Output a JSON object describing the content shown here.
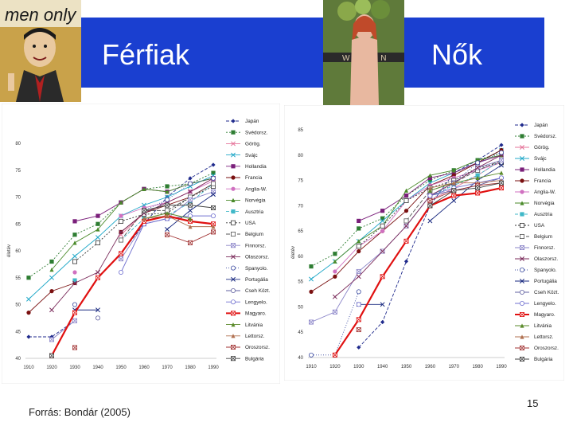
{
  "slide": {
    "title_left": "Férfiak",
    "title_right": "Nők",
    "source": "Forrás: Bondár (2005)",
    "page_number": "15",
    "banner_color": "#1a3fd0"
  },
  "images": {
    "left_magazine": {
      "title": "men only"
    },
    "right_magazine": {
      "title": "WOMEN"
    }
  },
  "chart_data": [
    {
      "type": "line",
      "ylabel": "életév",
      "x": [
        1910,
        1920,
        1930,
        1940,
        1950,
        1960,
        1970,
        1980,
        1990
      ],
      "ylim": [
        40,
        80
      ],
      "yticks": [
        40,
        45,
        50,
        55,
        60,
        65,
        70,
        75,
        80
      ],
      "legend_position": "right",
      "series": [
        {
          "name": "Japán",
          "color": "#1f2a8c",
          "marker": "diamond",
          "dash": "4,2",
          "values": [
            44,
            44,
            47,
            null,
            59.5,
            65,
            70,
            73.5,
            76
          ]
        },
        {
          "name": "Svédorsz.",
          "color": "#2e7d32",
          "marker": "square",
          "dash": "2,2",
          "values": [
            55,
            58,
            63,
            65,
            69,
            71.5,
            72,
            72.5,
            74.5
          ]
        },
        {
          "name": "Görög.",
          "color": "#e57399",
          "marker": "x",
          "dash": "",
          "values": [
            null,
            null,
            null,
            null,
            63,
            67,
            69,
            71,
            73.5
          ]
        },
        {
          "name": "Svájc",
          "color": "#20a8c8",
          "marker": "x",
          "dash": "",
          "values": [
            51,
            55,
            59,
            62.5,
            66.5,
            68.5,
            70,
            72,
            74
          ]
        },
        {
          "name": "Hollandia",
          "color": "#7a1f7a",
          "marker": "square",
          "dash": "",
          "values": [
            null,
            null,
            65.5,
            66.5,
            69,
            71.5,
            71,
            72.5,
            73.5
          ]
        },
        {
          "name": "Francia",
          "color": "#7a1010",
          "marker": "circle",
          "dash": "",
          "values": [
            48.5,
            52.5,
            54,
            null,
            63.5,
            67,
            68.5,
            70,
            72.5
          ]
        },
        {
          "name": "Anglia-W.",
          "color": "#d070c0",
          "marker": "circle",
          "dash": "",
          "values": [
            null,
            null,
            56,
            null,
            66.5,
            68,
            69,
            71,
            73
          ]
        },
        {
          "name": "Norvégia",
          "color": "#4a8a2a",
          "marker": "triangle",
          "dash": "",
          "values": [
            null,
            56.5,
            61.5,
            64,
            69,
            71.5,
            71,
            72.5,
            73.5
          ]
        },
        {
          "name": "Ausztria",
          "color": "#40b8c8",
          "marker": "square",
          "dash": "4,2",
          "values": [
            null,
            null,
            54.5,
            null,
            62,
            66,
            66.5,
            69,
            72.5
          ]
        },
        {
          "name": "USA",
          "color": "#333333",
          "marker": "square-open",
          "dash": "2,2",
          "values": [
            null,
            null,
            58,
            61.5,
            65.5,
            66.8,
            67,
            70,
            72
          ]
        },
        {
          "name": "Belgium",
          "color": "#555555",
          "marker": "square-open",
          "dash": "5,2",
          "values": [
            null,
            null,
            null,
            null,
            62,
            67.5,
            67.5,
            70,
            72.5
          ]
        },
        {
          "name": "Finnorsz.",
          "color": "#8a84c8",
          "marker": "x-square",
          "dash": "",
          "values": [
            null,
            43.5,
            47,
            null,
            58.5,
            65,
            66,
            69.5,
            71
          ]
        },
        {
          "name": "Olaszorsz.",
          "color": "#7a2a5a",
          "marker": "x",
          "dash": "",
          "values": [
            null,
            49,
            54,
            56,
            63.5,
            67,
            69,
            71,
            73.5
          ]
        },
        {
          "name": "Spanyolo.",
          "color": "#3a4aa0",
          "marker": "circle-open",
          "dash": "1,2",
          "values": [
            null,
            null,
            50,
            null,
            null,
            67.5,
            69.5,
            72.5,
            73.5
          ]
        },
        {
          "name": "Portugália",
          "color": "#1a2a80",
          "marker": "x",
          "dash": "",
          "values": [
            null,
            null,
            49,
            49,
            null,
            null,
            64,
            67.5,
            70.5
          ]
        },
        {
          "name": "Cseh Közt.",
          "color": "#6060a0",
          "marker": "circle-open",
          "dash": "",
          "values": [
            null,
            null,
            null,
            47.5,
            null,
            null,
            null,
            null,
            null
          ]
        },
        {
          "name": "Lengyelo.",
          "color": "#7070d0",
          "marker": "circle-open",
          "dash": "",
          "values": [
            null,
            null,
            null,
            null,
            56,
            65,
            66,
            66.5,
            66.5
          ]
        },
        {
          "name": "Magyaro.",
          "color": "#e01010",
          "marker": "x-square",
          "dash": "",
          "values": [
            null,
            40.5,
            48.5,
            55,
            59.5,
            65.5,
            66.5,
            65.5,
            65
          ]
        },
        {
          "name": "Litvánia",
          "color": "#5a8a2a",
          "marker": "triangle",
          "dash": "",
          "values": [
            null,
            null,
            null,
            null,
            null,
            66,
            67,
            66,
            null
          ]
        },
        {
          "name": "Lettorsz.",
          "color": "#b07050",
          "marker": "triangle",
          "dash": "",
          "values": [
            null,
            null,
            null,
            null,
            null,
            66,
            66.5,
            64.5,
            64.5
          ]
        },
        {
          "name": "Oroszorsz.",
          "color": "#a03030",
          "marker": "x-square",
          "dash": "",
          "values": [
            null,
            null,
            42,
            null,
            null,
            null,
            63,
            61.5,
            63.5
          ]
        },
        {
          "name": "Bulgária",
          "color": "#404040",
          "marker": "x-square",
          "dash": "",
          "values": [
            null,
            40.5,
            null,
            null,
            null,
            67.5,
            68.5,
            68.5,
            68
          ]
        }
      ]
    },
    {
      "type": "line",
      "ylabel": "életév",
      "x": [
        1910,
        1920,
        1930,
        1940,
        1950,
        1960,
        1970,
        1980,
        1990
      ],
      "ylim": [
        40,
        85
      ],
      "yticks": [
        40,
        45,
        50,
        55,
        60,
        65,
        70,
        75,
        80,
        85
      ],
      "legend_position": "right",
      "series": [
        {
          "name": "Japán",
          "color": "#1f2a8c",
          "marker": "diamond",
          "dash": "4,2",
          "values": [
            null,
            null,
            42,
            47,
            59,
            70,
            76.5,
            79,
            82
          ]
        },
        {
          "name": "Svédorsz.",
          "color": "#2e7d32",
          "marker": "square",
          "dash": "2,2",
          "values": [
            58,
            60.5,
            65.5,
            67.5,
            72,
            75,
            77,
            79,
            80.5
          ]
        },
        {
          "name": "Görög.",
          "color": "#e57399",
          "marker": "x",
          "dash": "",
          "values": [
            null,
            null,
            null,
            null,
            null,
            71,
            73.5,
            76,
            79
          ]
        },
        {
          "name": "Svájc",
          "color": "#20a8c8",
          "marker": "x",
          "dash": "",
          "values": [
            55.5,
            59,
            63,
            67,
            71,
            74.5,
            76.5,
            78.5,
            81
          ]
        },
        {
          "name": "Hollandia",
          "color": "#7a1f7a",
          "marker": "square",
          "dash": "",
          "values": [
            null,
            null,
            67,
            69,
            72,
            75.5,
            76.5,
            78.5,
            80
          ]
        },
        {
          "name": "Francia",
          "color": "#7a1010",
          "marker": "circle",
          "dash": "",
          "values": [
            53,
            56,
            61,
            65,
            69,
            74,
            76,
            78.5,
            81
          ]
        },
        {
          "name": "Anglia-W.",
          "color": "#d070c0",
          "marker": "circle",
          "dash": "",
          "values": [
            null,
            57,
            62,
            65,
            71,
            74,
            75.5,
            77,
            78.5
          ]
        },
        {
          "name": "Norvégia",
          "color": "#4a8a2a",
          "marker": "triangle",
          "dash": "",
          "values": [
            null,
            59,
            63,
            66,
            73,
            76,
            77,
            79,
            80
          ]
        },
        {
          "name": "Ausztria",
          "color": "#40b8c8",
          "marker": "square",
          "dash": "4,2",
          "values": [
            null,
            null,
            null,
            null,
            66,
            72,
            74,
            76,
            79
          ]
        },
        {
          "name": "USA",
          "color": "#333333",
          "marker": "square-open",
          "dash": "2,2",
          "values": [
            null,
            null,
            62,
            66,
            71,
            73.5,
            75,
            77.5,
            78.5
          ]
        },
        {
          "name": "Belgium",
          "color": "#555555",
          "marker": "square-open",
          "dash": "5,2",
          "values": [
            null,
            null,
            null,
            null,
            67,
            73,
            74.5,
            77,
            79
          ]
        },
        {
          "name": "Finnorsz.",
          "color": "#8a84c8",
          "marker": "x-square",
          "dash": "",
          "values": [
            47,
            49,
            57,
            61,
            66,
            72,
            74.5,
            77.5,
            79
          ]
        },
        {
          "name": "Olaszorsz.",
          "color": "#7a2a5a",
          "marker": "x",
          "dash": "",
          "values": [
            null,
            52,
            56,
            61,
            66,
            72,
            74.5,
            77.5,
            80
          ]
        },
        {
          "name": "Spanyolo.",
          "color": "#3a4aa0",
          "marker": "circle-open",
          "dash": "1,2",
          "values": [
            40.5,
            40.5,
            53,
            null,
            null,
            71,
            74.5,
            78.5,
            80.5
          ]
        },
        {
          "name": "Portugália",
          "color": "#1a2a80",
          "marker": "x",
          "dash": "",
          "values": [
            null,
            null,
            50.5,
            50.5,
            null,
            67,
            71,
            75,
            78
          ]
        },
        {
          "name": "Cseh Közt.",
          "color": "#6060a0",
          "marker": "circle-open",
          "dash": "",
          "values": [
            null,
            null,
            null,
            null,
            null,
            72,
            73,
            74,
            75.5
          ]
        },
        {
          "name": "Lengyelo.",
          "color": "#7070d0",
          "marker": "circle-open",
          "dash": "",
          "values": [
            null,
            null,
            50.5,
            null,
            null,
            72,
            73.5,
            74.5,
            75.5
          ]
        },
        {
          "name": "Magyaro.",
          "color": "#e01010",
          "marker": "x-square",
          "dash": "",
          "values": [
            null,
            40.5,
            47.5,
            56,
            63,
            70,
            72,
            72.5,
            73.5
          ]
        },
        {
          "name": "Litvánia",
          "color": "#5a8a2a",
          "marker": "triangle",
          "dash": "",
          "values": [
            null,
            null,
            null,
            null,
            null,
            73,
            74.5,
            75.5,
            76.5
          ]
        },
        {
          "name": "Lettorsz.",
          "color": "#b07050",
          "marker": "triangle",
          "dash": "",
          "values": [
            null,
            null,
            null,
            null,
            null,
            73.5,
            74.5,
            74.5,
            75
          ]
        },
        {
          "name": "Oroszorsz.",
          "color": "#a03030",
          "marker": "x-square",
          "dash": "",
          "values": [
            null,
            null,
            45.5,
            null,
            null,
            71,
            73,
            74,
            74.5
          ]
        },
        {
          "name": "Bulgária",
          "color": "#404040",
          "marker": "x-square",
          "dash": "",
          "values": [
            null,
            null,
            null,
            null,
            null,
            70,
            73,
            73.5,
            74.5
          ]
        }
      ]
    }
  ]
}
